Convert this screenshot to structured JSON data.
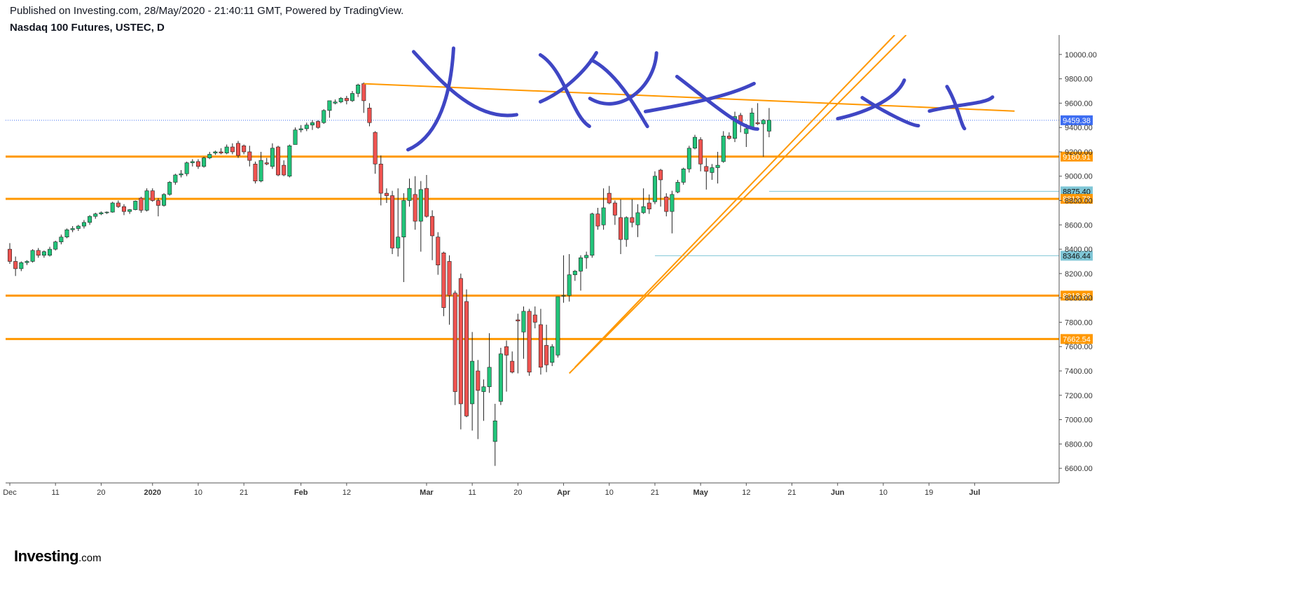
{
  "header": {
    "published": "Published on Investing.com, 28/May/2020 - 21:40:11 GMT, Powered by TradingView.",
    "symbol": "Nasdaq 100 Futures, USTEC, D"
  },
  "logo": {
    "main": "Investing",
    "suffix": ".com"
  },
  "colors": {
    "up": "#22c47a",
    "down": "#ef5350",
    "support": "#ff9800",
    "marker": "#3f46c4",
    "current_line": "#3d6df2",
    "level_thin": "#7fc6d6"
  },
  "chart_data": {
    "type": "candlestick",
    "title": "Nasdaq 100 Futures, USTEC, D",
    "ylim": [
      6480,
      10160
    ],
    "y_ticks": [
      "6600.00",
      "6800.00",
      "7000.00",
      "7200.00",
      "7400.00",
      "7600.00",
      "7800.00",
      "8000.00",
      "8200.00",
      "8400.00",
      "8600.00",
      "8800.00",
      "9000.00",
      "9200.00",
      "9400.00",
      "9600.00",
      "9800.00",
      "10000.00"
    ],
    "x_ticks": [
      {
        "label": "Dec",
        "index": 0
      },
      {
        "label": "11",
        "index": 8
      },
      {
        "label": "20",
        "index": 16
      },
      {
        "label": "2020",
        "index": 25,
        "bold": true
      },
      {
        "label": "10",
        "index": 33
      },
      {
        "label": "21",
        "index": 41
      },
      {
        "label": "Feb",
        "index": 51,
        "bold": true
      },
      {
        "label": "12",
        "index": 59
      },
      {
        "label": "Mar",
        "index": 73,
        "bold": true
      },
      {
        "label": "11",
        "index": 81
      },
      {
        "label": "20",
        "index": 89
      },
      {
        "label": "Apr",
        "index": 97,
        "bold": true
      },
      {
        "label": "10",
        "index": 105
      },
      {
        "label": "21",
        "index": 113
      },
      {
        "label": "May",
        "index": 121,
        "bold": true
      },
      {
        "label": "12",
        "index": 129
      },
      {
        "label": "21",
        "index": 137
      },
      {
        "label": "Jun",
        "index": 145,
        "bold": true
      },
      {
        "label": "10",
        "index": 153
      },
      {
        "label": "19",
        "index": 161
      },
      {
        "label": "Jul",
        "index": 169,
        "bold": true
      }
    ],
    "candles": [
      [
        8400,
        8450,
        8280,
        8300
      ],
      [
        8300,
        8340,
        8180,
        8240
      ],
      [
        8240,
        8300,
        8220,
        8290
      ],
      [
        8290,
        8310,
        8270,
        8300
      ],
      [
        8300,
        8400,
        8290,
        8390
      ],
      [
        8390,
        8410,
        8330,
        8350
      ],
      [
        8350,
        8390,
        8330,
        8380
      ],
      [
        8350,
        8420,
        8340,
        8400
      ],
      [
        8400,
        8470,
        8390,
        8460
      ],
      [
        8460,
        8520,
        8440,
        8500
      ],
      [
        8500,
        8570,
        8490,
        8560
      ],
      [
        8560,
        8590,
        8540,
        8570
      ],
      [
        8570,
        8600,
        8550,
        8590
      ],
      [
        8590,
        8640,
        8570,
        8620
      ],
      [
        8620,
        8680,
        8600,
        8670
      ],
      [
        8670,
        8700,
        8650,
        8690
      ],
      [
        8690,
        8710,
        8680,
        8700
      ],
      [
        8700,
        8710,
        8690,
        8705
      ],
      [
        8705,
        8790,
        8700,
        8780
      ],
      [
        8780,
        8800,
        8740,
        8750
      ],
      [
        8750,
        8770,
        8680,
        8710
      ],
      [
        8710,
        8730,
        8690,
        8725
      ],
      [
        8725,
        8800,
        8720,
        8795
      ],
      [
        8820,
        8830,
        8700,
        8720
      ],
      [
        8720,
        8900,
        8710,
        8880
      ],
      [
        8880,
        8900,
        8790,
        8800
      ],
      [
        8800,
        8820,
        8670,
        8760
      ],
      [
        8760,
        8860,
        8750,
        8850
      ],
      [
        8850,
        8960,
        8840,
        8950
      ],
      [
        8950,
        9020,
        8930,
        9010
      ],
      [
        9010,
        9050,
        8990,
        9020
      ],
      [
        9020,
        9120,
        9000,
        9110
      ],
      [
        9110,
        9140,
        9080,
        9120
      ],
      [
        9120,
        9140,
        9060,
        9080
      ],
      [
        9080,
        9160,
        9070,
        9150
      ],
      [
        9150,
        9200,
        9140,
        9180
      ],
      [
        9190,
        9210,
        9175,
        9200
      ],
      [
        9200,
        9230,
        9180,
        9190
      ],
      [
        9190,
        9260,
        9180,
        9240
      ],
      [
        9240,
        9270,
        9180,
        9200
      ],
      [
        9270,
        9290,
        9150,
        9170
      ],
      [
        9250,
        9260,
        9180,
        9200
      ],
      [
        9200,
        9250,
        9080,
        9130
      ],
      [
        9100,
        9120,
        8940,
        8960
      ],
      [
        8960,
        9200,
        8950,
        9130
      ],
      [
        9110,
        9150,
        9090,
        9100
      ],
      [
        9080,
        9270,
        9060,
        9230
      ],
      [
        9240,
        9250,
        9000,
        9010
      ],
      [
        9090,
        9130,
        9000,
        9010
      ],
      [
        9000,
        9260,
        8990,
        9250
      ],
      [
        9260,
        9400,
        9260,
        9380
      ],
      [
        9380,
        9420,
        9360,
        9390
      ],
      [
        9390,
        9440,
        9370,
        9420
      ],
      [
        9420,
        9460,
        9380,
        9440
      ],
      [
        9450,
        9460,
        9390,
        9400
      ],
      [
        9440,
        9550,
        9430,
        9540
      ],
      [
        9540,
        9600,
        9480,
        9620
      ],
      [
        9600,
        9630,
        9590,
        9610
      ],
      [
        9610,
        9650,
        9600,
        9640
      ],
      [
        9640,
        9660,
        9590,
        9620
      ],
      [
        9620,
        9700,
        9610,
        9680
      ],
      [
        9680,
        9760,
        9650,
        9750
      ],
      [
        9760,
        9770,
        9520,
        9620
      ],
      [
        9560,
        9600,
        9410,
        9440
      ],
      [
        9360,
        9370,
        9020,
        9100
      ],
      [
        9100,
        9170,
        8760,
        8860
      ],
      [
        8860,
        8900,
        8780,
        8840
      ],
      [
        8840,
        8880,
        8360,
        8410
      ],
      [
        8410,
        8900,
        8340,
        8500
      ],
      [
        8500,
        8860,
        8130,
        8800
      ],
      [
        8800,
        8980,
        8750,
        8900
      ],
      [
        8850,
        9000,
        8560,
        8630
      ],
      [
        8630,
        8960,
        8380,
        8890
      ],
      [
        8900,
        9010,
        8660,
        8670
      ],
      [
        8670,
        8720,
        8310,
        8510
      ],
      [
        8500,
        8540,
        8190,
        8270
      ],
      [
        8370,
        8380,
        7850,
        7920
      ],
      [
        8300,
        8350,
        7780,
        8020
      ],
      [
        8040,
        8060,
        7120,
        7230
      ],
      [
        8160,
        8200,
        6920,
        7130
      ],
      [
        7970,
        8070,
        7020,
        7030
      ],
      [
        7130,
        7720,
        6910,
        7480
      ],
      [
        7400,
        7490,
        6840,
        7240
      ],
      [
        7230,
        7330,
        6990,
        7270
      ],
      [
        7270,
        7710,
        7220,
        7430
      ],
      [
        6820,
        7130,
        6620,
        6990
      ],
      [
        7150,
        7590,
        7120,
        7540
      ],
      [
        7600,
        7650,
        7230,
        7530
      ],
      [
        7480,
        7560,
        7380,
        7390
      ],
      [
        7820,
        7870,
        7380,
        7810
      ],
      [
        7720,
        7930,
        7500,
        7890
      ],
      [
        7890,
        7910,
        7360,
        7390
      ],
      [
        7860,
        7930,
        7750,
        7800
      ],
      [
        7780,
        7910,
        7370,
        7430
      ],
      [
        7610,
        7780,
        7390,
        7450
      ],
      [
        7470,
        7620,
        7440,
        7600
      ],
      [
        7530,
        7990,
        7510,
        8010
      ],
      [
        8020,
        8350,
        7960,
        8020
      ],
      [
        8020,
        8360,
        7970,
        8190
      ],
      [
        8190,
        8230,
        8140,
        8220
      ],
      [
        8220,
        8350,
        8060,
        8330
      ],
      [
        8330,
        8380,
        8240,
        8350
      ],
      [
        8350,
        8700,
        8330,
        8690
      ],
      [
        8690,
        8740,
        8560,
        8590
      ],
      [
        8600,
        8900,
        8560,
        8740
      ],
      [
        8860,
        8920,
        8770,
        8780
      ],
      [
        8780,
        8800,
        8600,
        8680
      ],
      [
        8660,
        8810,
        8360,
        8480
      ],
      [
        8480,
        8670,
        8420,
        8660
      ],
      [
        8660,
        8810,
        8580,
        8620
      ],
      [
        8600,
        8770,
        8500,
        8700
      ],
      [
        8700,
        8900,
        8690,
        8750
      ],
      [
        8780,
        8850,
        8690,
        8730
      ],
      [
        8790,
        9040,
        8770,
        9000
      ],
      [
        9050,
        9060,
        8750,
        8970
      ],
      [
        8830,
        8860,
        8670,
        8710
      ],
      [
        8710,
        8880,
        8530,
        8850
      ],
      [
        8870,
        8970,
        8860,
        8950
      ],
      [
        8950,
        9070,
        8930,
        9060
      ],
      [
        9060,
        9250,
        9030,
        9230
      ],
      [
        9230,
        9340,
        9220,
        9320
      ],
      [
        9300,
        9320,
        9040,
        9100
      ],
      [
        9080,
        9150,
        8890,
        9040
      ],
      [
        9030,
        9100,
        8970,
        9070
      ],
      [
        9070,
        9200,
        8940,
        9090
      ],
      [
        9120,
        9370,
        9110,
        9330
      ],
      [
        9330,
        9360,
        9300,
        9310
      ],
      [
        9310,
        9530,
        9280,
        9490
      ],
      [
        9500,
        9520,
        9360,
        9430
      ],
      [
        9350,
        9430,
        9240,
        9390
      ],
      [
        9400,
        9560,
        9390,
        9520
      ],
      [
        9440,
        9600,
        9420,
        9430
      ],
      [
        9430,
        9470,
        9160,
        9460
      ],
      [
        9370,
        9560,
        9320,
        9460
      ]
    ],
    "levels": [
      {
        "value": 9459.38,
        "label": "9459.38",
        "style": "current"
      },
      {
        "value": 9160.91,
        "label": "9160.91",
        "style": "support"
      },
      {
        "value": 8875.4,
        "label": "8875.40",
        "style": "thin",
        "from_index": 133
      },
      {
        "value": 8813.73,
        "label": "8813.73",
        "style": "support"
      },
      {
        "value": 8346.44,
        "label": "8346.44",
        "style": "thin",
        "from_index": 113
      },
      {
        "value": 8018.86,
        "label": "8018.86",
        "style": "support"
      },
      {
        "value": 7662.54,
        "label": "7662.54",
        "style": "support"
      }
    ],
    "trendlines": [
      {
        "from": [
          62,
          9760
        ],
        "to": [
          176,
          9535
        ],
        "style": "orange"
      },
      {
        "from": [
          99,
          7430
        ],
        "to": [
          155,
          10160
        ],
        "style": "orange"
      },
      {
        "from": [
          98,
          7380
        ],
        "to": [
          157,
          10160
        ],
        "style": "orange"
      }
    ],
    "markers": [
      {
        "name": "marker-1",
        "index": 76.5,
        "value": 9620
      },
      {
        "name": "marker-2",
        "index": 96,
        "value": 9640
      },
      {
        "name": "marker-3",
        "index": 108,
        "value": 9610
      },
      {
        "name": "marker-4",
        "index": 123,
        "value": 9560
      },
      {
        "name": "marker-5",
        "index": 153,
        "value": 9530
      },
      {
        "name": "marker-6",
        "index": 166,
        "value": 9535
      }
    ]
  }
}
